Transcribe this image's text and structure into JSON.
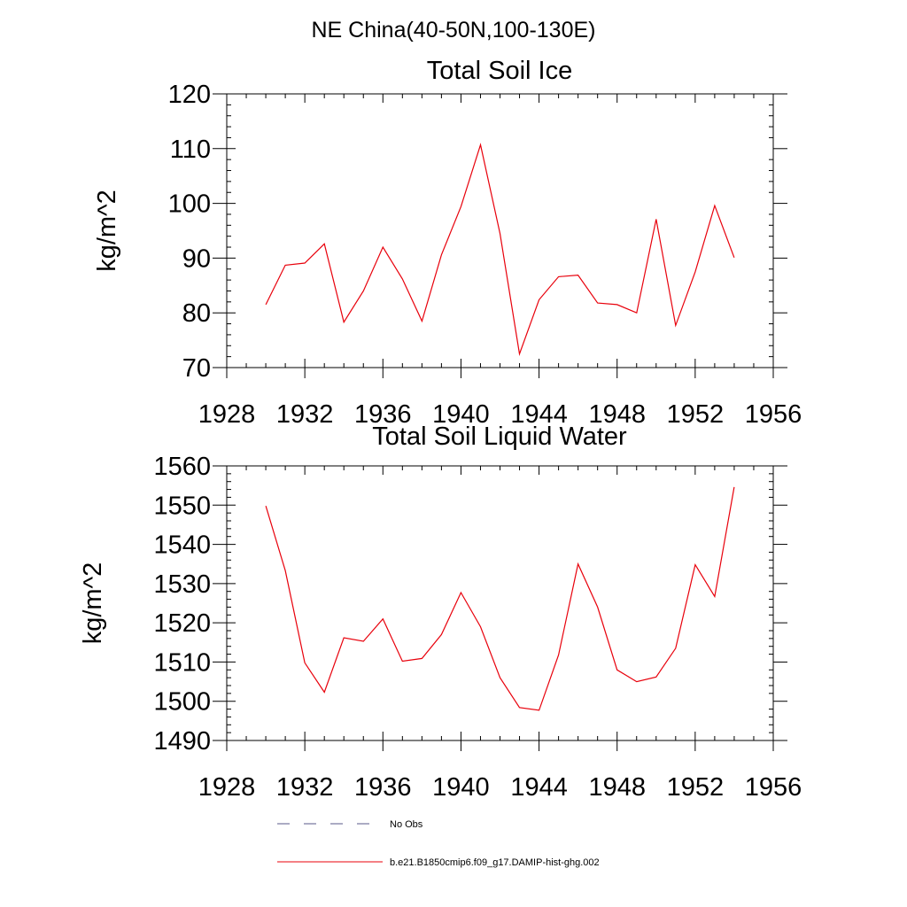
{
  "figure": {
    "suptitle": "NE China(40-50N,100-130E)"
  },
  "legend": {
    "entries": [
      {
        "label": "No Obs",
        "style": "dashed",
        "color": "#5a5a8a"
      },
      {
        "label": "b.e21.B1850cmip6.f09_g17.DAMIP-hist-ghg.002",
        "style": "solid",
        "color": "#e8000b"
      }
    ]
  },
  "chart_data": [
    {
      "type": "line",
      "title": "Total Soil Ice",
      "ylabel": "kg/m^2",
      "xlabel": "",
      "xlim": [
        1928,
        1956
      ],
      "ylim": [
        70,
        120
      ],
      "xticks": [
        1928,
        1932,
        1936,
        1940,
        1944,
        1948,
        1952,
        1956
      ],
      "yticks": [
        70,
        80,
        90,
        100,
        110,
        120
      ],
      "grid": false,
      "series": [
        {
          "color": "#e8000b",
          "x": [
            1930,
            1931,
            1932,
            1933,
            1934,
            1935,
            1936,
            1937,
            1938,
            1939,
            1940,
            1941,
            1942,
            1943,
            1944,
            1945,
            1946,
            1947,
            1948,
            1949,
            1950,
            1951,
            1952,
            1953,
            1954
          ],
          "values": [
            81.5,
            88.7,
            89.1,
            92.6,
            78.3,
            84.0,
            92.0,
            86.2,
            78.5,
            90.6,
            99.4,
            110.7,
            94.5,
            72.5,
            82.4,
            86.6,
            86.9,
            81.8,
            81.5,
            80.0,
            97.1,
            77.7,
            87.5,
            99.6,
            90.1
          ]
        }
      ]
    },
    {
      "type": "line",
      "title": "Total Soil Liquid Water",
      "ylabel": "kg/m^2",
      "xlabel": "",
      "xlim": [
        1928,
        1956
      ],
      "ylim": [
        1490,
        1560
      ],
      "xticks": [
        1928,
        1932,
        1936,
        1940,
        1944,
        1948,
        1952,
        1956
      ],
      "yticks": [
        1490,
        1500,
        1510,
        1520,
        1530,
        1540,
        1550,
        1560
      ],
      "grid": false,
      "series": [
        {
          "color": "#e8000b",
          "x": [
            1930,
            1931,
            1932,
            1933,
            1934,
            1935,
            1936,
            1937,
            1938,
            1939,
            1940,
            1941,
            1942,
            1943,
            1944,
            1945,
            1946,
            1947,
            1948,
            1949,
            1950,
            1951,
            1952,
            1953,
            1954
          ],
          "values": [
            1549.8,
            1533.3,
            1509.8,
            1502.3,
            1516.2,
            1515.3,
            1521.0,
            1510.2,
            1510.9,
            1517.0,
            1527.7,
            1519.0,
            1506.0,
            1498.4,
            1497.7,
            1511.8,
            1535.0,
            1524.0,
            1508.0,
            1505.0,
            1506.2,
            1513.5,
            1534.8,
            1526.7,
            1554.6
          ]
        }
      ]
    }
  ]
}
